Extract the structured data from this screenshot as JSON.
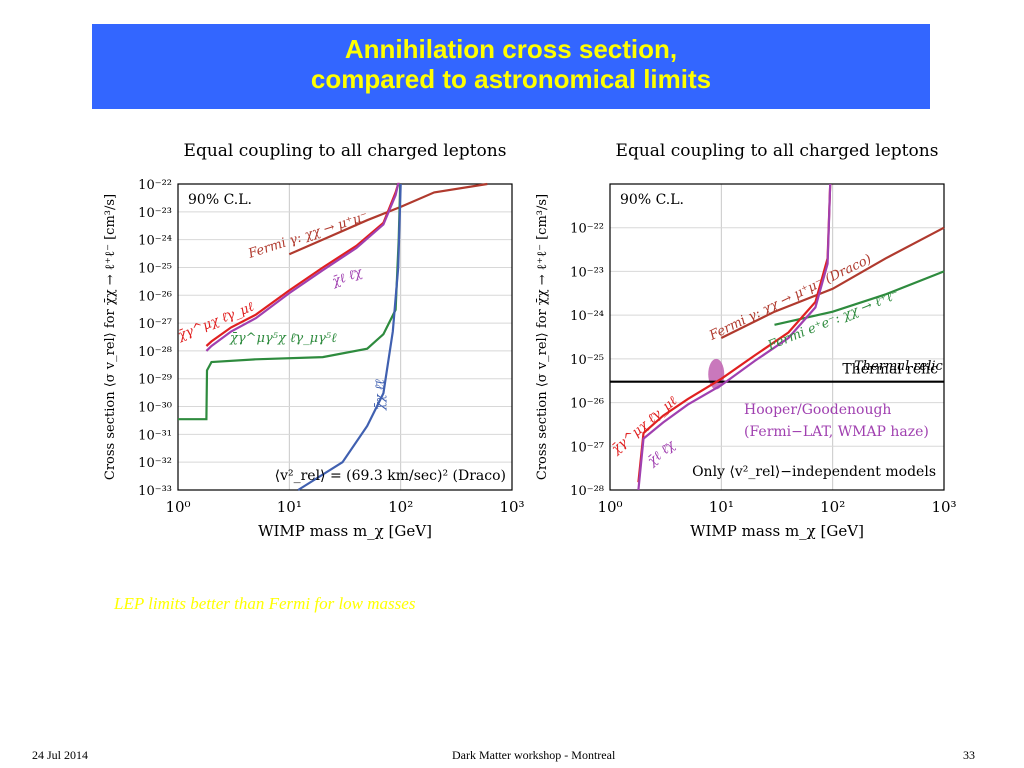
{
  "slide": {
    "title_line1": "Annihilation cross section,",
    "title_line2": "compared to astronomical limits",
    "caption": "LEP limits better than Fermi for low masses",
    "footer_date": "24 Jul 2014",
    "footer_center": "Dark Matter workshop - Montreal",
    "footer_page": "33"
  },
  "chart_data": [
    {
      "type": "line",
      "title": "Equal coupling to all charged leptons",
      "xlabel": "WIMP mass m_χ [GeV]",
      "ylabel": "Cross section ⟨σ v_rel⟩ for χ̄χ → ℓ⁺ℓ⁻ [cm³/s]",
      "xscale": "log",
      "yscale": "log",
      "xlim": [
        1,
        1000
      ],
      "ylim": [
        1e-33,
        1e-22
      ],
      "xticks": [
        "10⁰",
        "10¹",
        "10²",
        "10³"
      ],
      "yticks": [
        "10⁻³³",
        "10⁻³²",
        "10⁻³¹",
        "10⁻³⁰",
        "10⁻²⁹",
        "10⁻²⁸",
        "10⁻²⁷",
        "10⁻²⁶",
        "10⁻²⁵",
        "10⁻²⁴",
        "10⁻²³",
        "10⁻²²"
      ],
      "grid": true,
      "annotations": [
        "90% C.L.",
        "⟨v²_rel⟩ = (69.3 km/sec)² (Draco)"
      ],
      "series": [
        {
          "name": "Fermi γ: χχ → μ⁺μ⁻",
          "color": "#b03a2e",
          "x": [
            10,
            20,
            50,
            100,
            200,
            600
          ],
          "y": [
            3e-25,
            1e-24,
            5e-24,
            1.5e-23,
            5e-23,
            1e-22
          ]
        },
        {
          "name": "χ̄γ^μχ ℓ̄γ_μℓ",
          "color": "#e02020",
          "x": [
            1.8,
            2,
            3,
            5,
            10,
            20,
            40,
            70,
            90,
            95,
            98
          ],
          "y": [
            1.5e-28,
            2.2e-28,
            7e-28,
            2e-27,
            1.5e-26,
            1e-25,
            6e-25,
            4e-24,
            5e-23,
            1e-22,
            1e-22
          ]
        },
        {
          "name": "χ̄ℓ ℓ̄χ",
          "color": "#a040b0",
          "x": [
            1.8,
            2,
            3,
            5,
            10,
            20,
            40,
            70,
            90,
            95,
            98
          ],
          "y": [
            1e-28,
            1.5e-28,
            5e-28,
            1.5e-27,
            1.2e-26,
            8e-26,
            5e-25,
            3.5e-24,
            4e-23,
            1e-22,
            1e-22
          ]
        },
        {
          "name": "χ̄γ^μγ⁵χ ℓ̄γ_μγ⁵ℓ",
          "color": "#2e8b3e",
          "x": [
            1,
            1.8,
            1.82,
            2,
            5,
            20,
            50,
            70,
            90,
            96,
            99
          ],
          "y": [
            3.5e-31,
            3.5e-31,
            2e-29,
            4e-29,
            5e-29,
            6e-29,
            1.2e-28,
            4e-28,
            3e-27,
            1e-24,
            1e-22
          ]
        },
        {
          "name": "χ̄χ ℓ̄ℓ",
          "color": "#4060b0",
          "x": [
            12,
            30,
            50,
            70,
            85,
            95,
            100
          ],
          "y": [
            1e-33,
            1e-32,
            2e-31,
            3e-30,
            5e-28,
            1e-25,
            1e-22
          ]
        }
      ]
    },
    {
      "type": "line",
      "title": "Equal coupling to all charged leptons",
      "xlabel": "WIMP mass m_χ [GeV]",
      "ylabel": "Cross section ⟨σ v_rel⟩ for χ̄χ → ℓ⁺ℓ⁻ [cm³/s]",
      "xscale": "log",
      "yscale": "log",
      "xlim": [
        1,
        1000
      ],
      "ylim": [
        1e-28,
        1e-21
      ],
      "xticks": [
        "10⁰",
        "10¹",
        "10²",
        "10³"
      ],
      "yticks": [
        "10⁻²⁸",
        "10⁻²⁷",
        "10⁻²⁶",
        "10⁻²⁵",
        "10⁻²⁴",
        "10⁻²³",
        "10⁻²²"
      ],
      "grid": true,
      "annotations": [
        "90% C.L.",
        "Thermal relic",
        "Hooper/Goodenough",
        "(Fermi−LAT, WMAP haze)",
        "Only ⟨v²_rel⟩−independent models"
      ],
      "series": [
        {
          "name": "Fermi γ: χχ → μ⁺μ⁻ (Draco)",
          "color": "#b03a2e",
          "x": [
            10,
            30,
            100,
            300,
            1000
          ],
          "y": [
            3e-25,
            1.2e-24,
            4e-24,
            2e-23,
            1e-22
          ]
        },
        {
          "name": "Fermi e⁺e⁻: χχ → ℓ⁺ℓ⁻",
          "color": "#2e8b3e",
          "x": [
            30,
            100,
            300,
            1000
          ],
          "y": [
            6e-25,
            1.2e-24,
            3e-24,
            1e-23
          ]
        },
        {
          "name": "Thermal relic",
          "color": "#000000",
          "x": [
            1,
            1000
          ],
          "y": [
            3e-26,
            3e-26
          ]
        },
        {
          "name": "χ̄γ^μχ ℓ̄γ_μℓ",
          "color": "#e02020",
          "x": [
            1.8,
            2,
            3,
            5,
            10,
            20,
            40,
            70,
            90,
            95
          ],
          "y": [
            1.5e-28,
            2e-27,
            5e-27,
            1.2e-26,
            3.5e-26,
            1.2e-25,
            4e-25,
            2e-24,
            2e-23,
            1e-21
          ]
        },
        {
          "name": "χ̄ℓ ℓ̄χ",
          "color": "#a040b0",
          "x": [
            1.8,
            2,
            3,
            5,
            10,
            20,
            40,
            70,
            90,
            95
          ],
          "y": [
            1e-28,
            1.5e-27,
            3.5e-27,
            9e-27,
            2.5e-26,
            9e-26,
            3e-25,
            1.5e-24,
            1.5e-23,
            1e-21
          ]
        }
      ],
      "region": {
        "name": "Hooper/Goodenough",
        "color": "#c060b0",
        "x": 9,
        "y_range": [
          2e-26,
          1e-25
        ]
      }
    }
  ]
}
